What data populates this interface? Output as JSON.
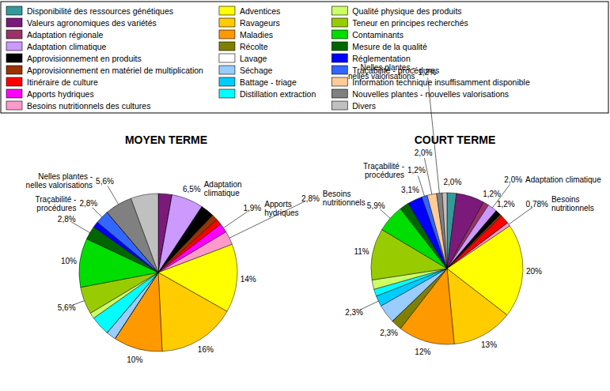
{
  "chart_data": [
    {
      "type": "pie",
      "title": "MOYEN TERME",
      "legend": "top",
      "data_labels": true,
      "categories": [
        "Disponibilité des ressources génétiques",
        "Valeurs agronomiques des variétés",
        "Adaptation régionale",
        "Adaptation climatique",
        "Approvisionnement en produits",
        "Approvisionnement en matériel de multiplication",
        "Itinéraire de culture",
        "Apports hydriques",
        "Besoins nutritionnels des cultures",
        "Adventices",
        "Ravageurs",
        "Maladies",
        "Récolte",
        "Lavage",
        "Séchage",
        "Battage - triage",
        "Distillation extraction",
        "Qualité physique des produits",
        "Teneur en principes recherchés",
        "Contaminants",
        "Mesure de la qualité",
        "Réglementation",
        "Traçabilité - procédures",
        "Information technique insuffisamment disponible",
        "Nouvelles plantes - nouvelles valorisations",
        "Divers"
      ],
      "colors": [
        "#339999",
        "#7b1a7b",
        "#993366",
        "#cc99ff",
        "#000000",
        "#993300",
        "#ff0000",
        "#ff00ff",
        "#ff99cc",
        "#ffff00",
        "#ffcc00",
        "#ff9900",
        "#808000",
        "#ffffff",
        "#99ccff",
        "#00ccff",
        "#00ffff",
        "#ccff66",
        "#99cc00",
        "#00dd00",
        "#006600",
        "#0000ff",
        "#3366ff",
        "#ffcc99",
        "#808080",
        "#c0c0c0"
      ],
      "values": [
        0,
        2.8,
        0,
        6.5,
        2.8,
        1.2,
        1.2,
        1.9,
        2.8,
        14,
        16,
        10,
        0,
        0,
        2,
        0,
        4,
        1.2,
        5.6,
        10,
        2.8,
        1.2,
        2.8,
        0,
        5.6,
        5.6
      ],
      "value_labels": [
        null,
        null,
        null,
        "6,5%",
        null,
        null,
        null,
        "1,9%",
        "2,8%",
        "14%",
        "16%",
        "10%",
        null,
        null,
        null,
        null,
        null,
        null,
        "5,6%",
        "10%",
        "2,8%",
        null,
        "2,8%",
        null,
        "5,6%",
        null
      ],
      "annotations": [
        {
          "category": "Adaptation climatique",
          "lines": [
            "Adaptation",
            "climatique"
          ]
        },
        {
          "category": "Apports hydriques",
          "lines": [
            "Apports",
            "hydriques"
          ]
        },
        {
          "category": "Besoins nutritionnels des cultures",
          "lines": [
            "Besoins",
            "nutritionnels"
          ]
        },
        {
          "category": "Traçabilité - procédures",
          "lines": [
            "Traçabilité -",
            "procédures"
          ]
        },
        {
          "category": "Nouvelles plantes - nouvelles valorisations",
          "lines": [
            "Nelles plantes -",
            "nelles valorisations"
          ]
        }
      ]
    },
    {
      "type": "pie",
      "title": "COURT TERME",
      "data_labels": true,
      "categories": [
        "Disponibilité des ressources génétiques",
        "Valeurs agronomiques des variétés",
        "Adaptation régionale",
        "Adaptation climatique",
        "Approvisionnement en produits",
        "Approvisionnement en matériel de multiplication",
        "Itinéraire de culture",
        "Apports hydriques",
        "Besoins nutritionnels des cultures",
        "Adventices",
        "Ravageurs",
        "Maladies",
        "Récolte",
        "Lavage",
        "Séchage",
        "Battage - triage",
        "Distillation extraction",
        "Qualité physique des produits",
        "Teneur en principes recherchés",
        "Contaminants",
        "Mesure de la qualité",
        "Réglementation",
        "Traçabilité - procédures",
        "Information technique insuffisamment disponible",
        "Nouvelles plantes - nouvelles valorisations",
        "Divers"
      ],
      "colors": [
        "#339999",
        "#7b1a7b",
        "#993366",
        "#cc99ff",
        "#000000",
        "#993300",
        "#ff0000",
        "#ff00ff",
        "#ff99cc",
        "#ffff00",
        "#ffcc00",
        "#ff9900",
        "#808000",
        "#ffffff",
        "#99ccff",
        "#00ccff",
        "#00ffff",
        "#ccff66",
        "#99cc00",
        "#00dd00",
        "#006600",
        "#0000ff",
        "#3366ff",
        "#ffcc99",
        "#808080",
        "#c0c0c0"
      ],
      "values": [
        2.0,
        6,
        1.2,
        2.0,
        1.2,
        0.4,
        1.9,
        0,
        0.78,
        20,
        13,
        12,
        2.3,
        0,
        4,
        2.3,
        1.5,
        2,
        11,
        5.9,
        2,
        3.1,
        1.2,
        2.0,
        1.2,
        1
      ],
      "value_labels": [
        "2,0%",
        null,
        "1,2%",
        "2,0%",
        "1,2%",
        null,
        null,
        null,
        "0,78%",
        "20%",
        "13%",
        "12%",
        "2,3%",
        null,
        null,
        "2,3%",
        null,
        null,
        "11%",
        "5,9%",
        null,
        "3,1%",
        "1,2%",
        "2,0%",
        "1,2%",
        null
      ],
      "annotations": [
        {
          "category": "Adaptation climatique",
          "lines": [
            "Adaptation climatique"
          ]
        },
        {
          "category": "Besoins nutritionnels des cultures",
          "lines": [
            "Besoins",
            "nutritionnels"
          ]
        },
        {
          "category": "Traçabilité - procédures",
          "lines": [
            "Traçabilité -",
            "procédures"
          ]
        },
        {
          "category": "Nouvelles plantes - nouvelles valorisations",
          "lines": [
            "Nelles plantes -",
            "nelles valorisations"
          ]
        }
      ]
    }
  ]
}
